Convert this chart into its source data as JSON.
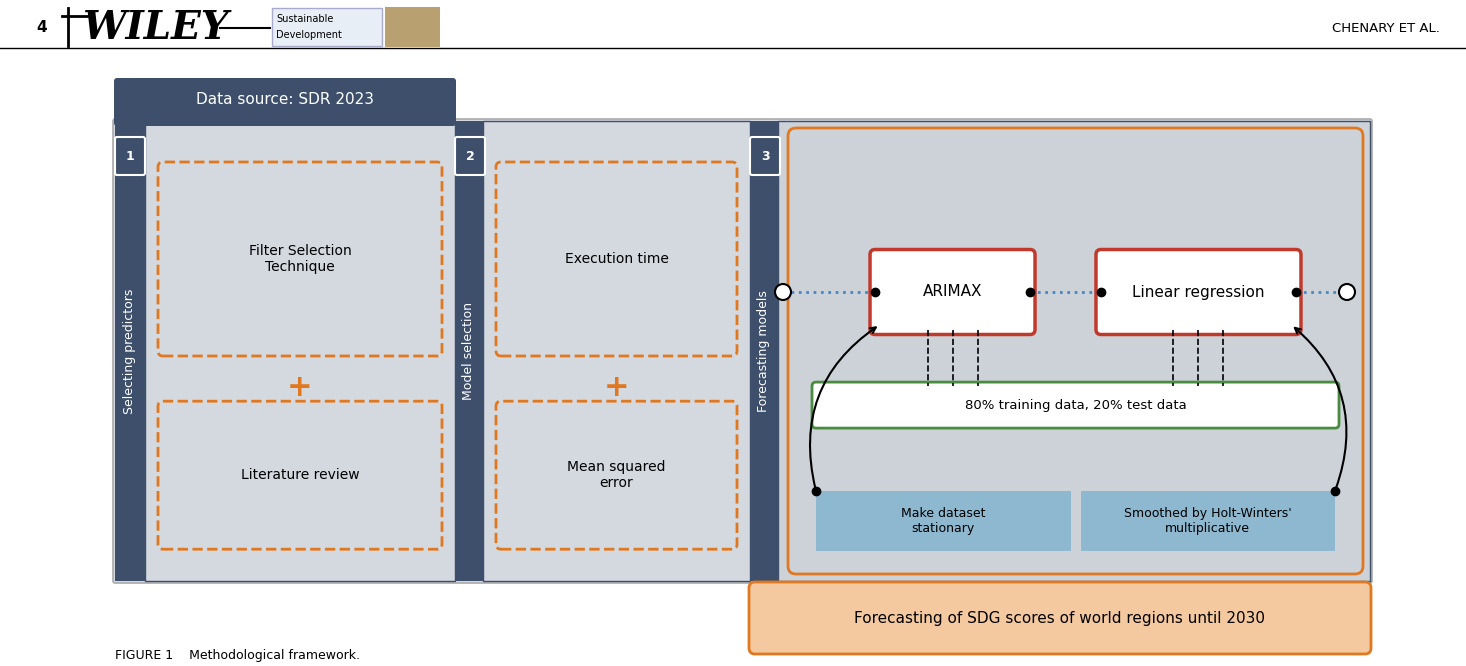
{
  "bg_color": "#ffffff",
  "header_color": "#3d4f6b",
  "col_bg_color": "#d4d8df",
  "orange_dash_color": "#e07820",
  "red_box_color": "#c0392b",
  "green_box_color": "#4a8c3f",
  "blue_box_color": "#8db8d0",
  "forecast_bg": "#f5c9a0",
  "forecast_border": "#e07820",
  "header_text": "Data source: SDR 2023",
  "label1": "Selecting predictors",
  "label2": "Model selection",
  "label3": "Forecasting models",
  "num1": "1",
  "num2": "2",
  "num3": "3",
  "box1a": "Filter Selection\nTechnique",
  "box1b": "Literature review",
  "box2a": "Execution time",
  "box2b": "Mean squared\nerror",
  "arimax_label": "ARIMAX",
  "linreg_label": "Linear regression",
  "training_label": "80% training data, 20% test data",
  "make_dataset": "Make dataset\nstationary",
  "holt_winters": "Smoothed by Holt-Winters'\nmultiplicative",
  "forecast_text": "Forecasting of SDG scores of world regions until 2030",
  "figure_caption": "FIGURE 1    Methodological framework.",
  "wiley_text": "WILEY",
  "page_num": "4",
  "author": "CHENARY ET AL."
}
